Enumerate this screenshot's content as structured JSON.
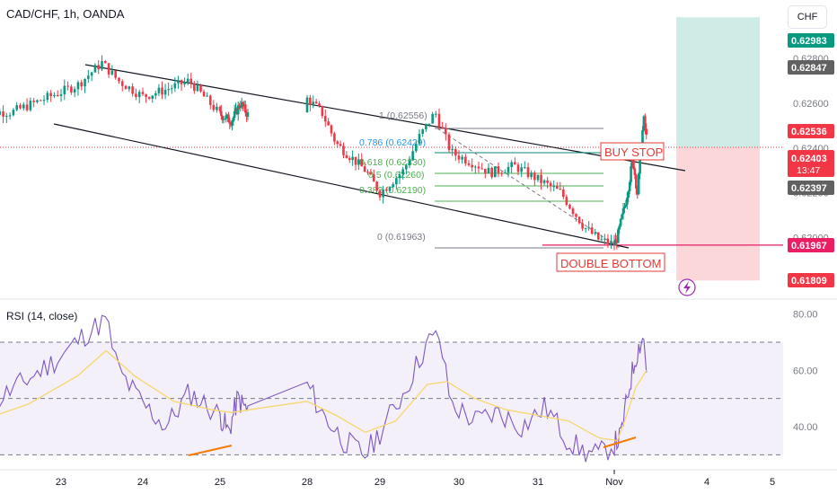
{
  "header": {
    "title": "CAD/CHF, 1h, OANDA",
    "currency_button": "CHF"
  },
  "rsi_panel": {
    "title": "RSI (14, close)"
  },
  "chart_data": [
    {
      "type": "candlestick",
      "symbol": "CAD/CHF",
      "timeframe": "1h",
      "price_axis_ticks": [
        {
          "value": 0.62,
          "label": "0.62000"
        },
        {
          "value": 0.622,
          "label": "0.62200"
        },
        {
          "value": 0.624,
          "label": "0.62400"
        },
        {
          "value": 0.626,
          "label": "0.62600"
        },
        {
          "value": 0.628,
          "label": "0.62800"
        }
      ],
      "ylim": [
        0.6173,
        0.6306
      ],
      "time_axis_ticks": [
        {
          "day": 23,
          "label": "23"
        },
        {
          "day": 24,
          "label": "24"
        },
        {
          "day": 25,
          "label": "25"
        },
        {
          "day": 28,
          "label": "28"
        },
        {
          "day": 29,
          "label": "29"
        },
        {
          "day": 30,
          "label": "30"
        },
        {
          "day": 31,
          "label": "31"
        },
        {
          "day": 32,
          "label": "Nov"
        },
        {
          "day": 35,
          "label": "4"
        },
        {
          "day": 36,
          "label": "5"
        }
      ],
      "price_path": [
        [
          22.4,
          0.6256
        ],
        [
          22.8,
          0.6262
        ],
        [
          23.2,
          0.6268
        ],
        [
          23.5,
          0.6278
        ],
        [
          23.7,
          0.627
        ],
        [
          24.0,
          0.6263
        ],
        [
          24.3,
          0.6266
        ],
        [
          24.6,
          0.627
        ],
        [
          25.0,
          0.6255
        ],
        [
          25.4,
          0.6252
        ],
        [
          25.7,
          0.626
        ],
        [
          26.0,
          0.6254
        ],
        [
          28.0,
          0.6262
        ],
        [
          28.2,
          0.6256
        ],
        [
          28.4,
          0.6242
        ],
        [
          28.8,
          0.623
        ],
        [
          29.0,
          0.622
        ],
        [
          29.3,
          0.623
        ],
        [
          29.5,
          0.6245
        ],
        [
          29.7,
          0.6256
        ],
        [
          29.9,
          0.6238
        ],
        [
          30.2,
          0.6233
        ],
        [
          30.4,
          0.6229
        ],
        [
          30.7,
          0.6232
        ],
        [
          31.0,
          0.6226
        ],
        [
          31.3,
          0.622
        ],
        [
          31.6,
          0.6205
        ],
        [
          31.8,
          0.6199
        ],
        [
          32.0,
          0.6197
        ],
        [
          32.1,
          0.62
        ],
        [
          32.4,
          0.6218
        ],
        [
          32.6,
          0.6235
        ],
        [
          32.75,
          0.622
        ],
        [
          32.95,
          0.6253
        ],
        [
          33.05,
          0.6244
        ]
      ],
      "fibonacci": [
        {
          "ratio": "1",
          "value": 0.62556,
          "label": "1 (0.62556)"
        },
        {
          "ratio": "0.786",
          "value": 0.62429,
          "label": "0.786 (0.62429)"
        },
        {
          "ratio": "0.618",
          "value": 0.6233,
          "label": "0.618 (0.62330)"
        },
        {
          "ratio": "0.5",
          "value": 0.6226,
          "label": "0.5 (0.62260)"
        },
        {
          "ratio": "0.382",
          "value": 0.6219,
          "label": "0.382 (0.62190)"
        },
        {
          "ratio": "0",
          "value": 0.61963,
          "label": "0 (0.61963)"
        }
      ],
      "channel": {
        "upper": [
          [
            22.4,
            0.6273
          ],
          [
            33.0,
            0.6232
          ]
        ],
        "lower": [
          [
            22.0,
            0.6256
          ],
          [
            32.0,
            0.6198
          ]
        ]
      },
      "annotations": [
        {
          "text": "BUY STOP",
          "color": "#e53935"
        },
        {
          "text": "DOUBLE BOTTOM",
          "color": "#e53935"
        }
      ],
      "position": {
        "entry": 0.62403,
        "target": 0.62983,
        "stop": 0.61809,
        "start_day": 33.1,
        "end_day": 34.2
      },
      "price_labels": [
        {
          "value": 0.62983,
          "label": "0.62983",
          "color": "#089981"
        },
        {
          "value": 0.62847,
          "label": "0.62847",
          "color": "#616161"
        },
        {
          "value": 0.62536,
          "label": "0.62536",
          "color": "#f23645"
        },
        {
          "value": 0.62403,
          "label": "0.62403",
          "color": "#f23645",
          "sub": "13:47"
        },
        {
          "value": 0.62397,
          "label": "0.62397",
          "color": "#616161"
        },
        {
          "value": 0.61967,
          "label": "0.61967",
          "color": "#e91e63"
        },
        {
          "value": 0.61809,
          "label": "0.61809",
          "color": "#f23645"
        }
      ]
    },
    {
      "type": "line",
      "title": "RSI (14, close)",
      "ylim": [
        25,
        85
      ],
      "ticks": [
        {
          "value": 80,
          "label": "80.00"
        },
        {
          "value": 60,
          "label": "60.00"
        },
        {
          "value": 40,
          "label": "40.00"
        }
      ],
      "bands": {
        "upper": 70,
        "middle": 50,
        "lower": 30
      },
      "rsi_path": [
        [
          22.0,
          45
        ],
        [
          22.5,
          55
        ],
        [
          23.0,
          65
        ],
        [
          23.3,
          73
        ],
        [
          23.55,
          78
        ],
        [
          23.7,
          60
        ],
        [
          24.0,
          48
        ],
        [
          24.3,
          40
        ],
        [
          24.6,
          52
        ],
        [
          25.0,
          44
        ],
        [
          25.3,
          38
        ],
        [
          25.6,
          50
        ],
        [
          26.0,
          45
        ],
        [
          28.0,
          55
        ],
        [
          28.2,
          45
        ],
        [
          28.5,
          35
        ],
        [
          28.8,
          30
        ],
        [
          29.0,
          38
        ],
        [
          29.3,
          52
        ],
        [
          29.6,
          70
        ],
        [
          29.75,
          72
        ],
        [
          29.9,
          48
        ],
        [
          30.2,
          42
        ],
        [
          30.5,
          45
        ],
        [
          30.8,
          40
        ],
        [
          31.1,
          47
        ],
        [
          31.4,
          35
        ],
        [
          31.6,
          31
        ],
        [
          31.8,
          30
        ],
        [
          32.0,
          34
        ],
        [
          32.2,
          36
        ],
        [
          32.5,
          55
        ],
        [
          32.7,
          65
        ],
        [
          32.85,
          70
        ],
        [
          32.95,
          72
        ],
        [
          33.05,
          60
        ]
      ],
      "ma_path": [
        [
          22.0,
          42
        ],
        [
          22.6,
          48
        ],
        [
          23.2,
          58
        ],
        [
          23.55,
          67
        ],
        [
          23.9,
          58
        ],
        [
          24.4,
          49
        ],
        [
          24.9,
          46
        ],
        [
          25.4,
          45
        ],
        [
          26.0,
          46
        ],
        [
          28.0,
          49
        ],
        [
          28.4,
          44
        ],
        [
          28.8,
          38
        ],
        [
          29.2,
          42
        ],
        [
          29.6,
          55
        ],
        [
          29.85,
          56
        ],
        [
          30.2,
          50
        ],
        [
          30.6,
          46
        ],
        [
          31.0,
          44
        ],
        [
          31.4,
          42
        ],
        [
          31.8,
          36
        ],
        [
          32.1,
          35
        ],
        [
          32.4,
          44
        ],
        [
          32.7,
          54
        ],
        [
          33.05,
          60
        ]
      ],
      "divergence": {
        "price_lows": [
          [
            24.9,
            0.6199
          ],
          [
            25.3,
            0.6195
          ]
        ],
        "rsi_lows": [
          [
            31.75,
            30.0
          ],
          [
            32.2,
            31.8
          ]
        ],
        "color": "#f57c00"
      }
    }
  ]
}
